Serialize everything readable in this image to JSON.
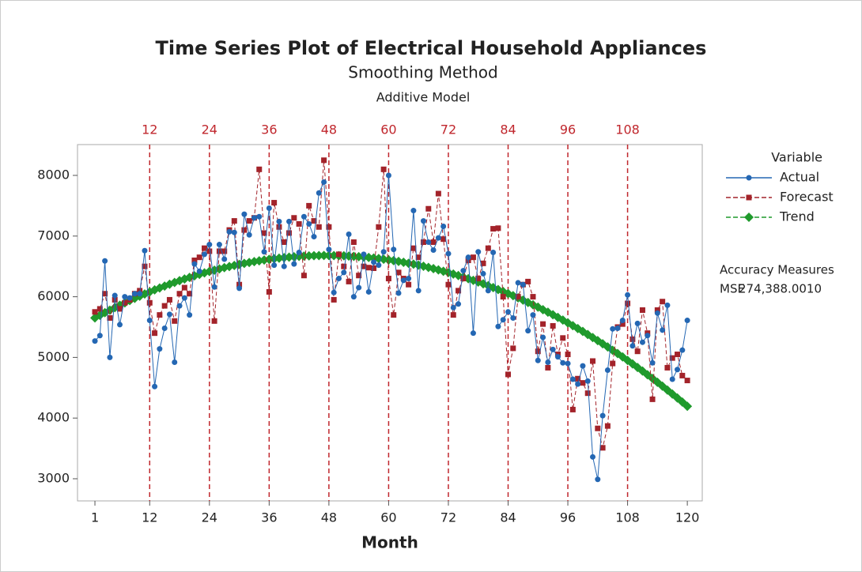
{
  "chart_data": {
    "type": "line",
    "title": "Time Series Plot of Electrical Household Appliances",
    "subtitle": "Smoothing Method",
    "subsubtitle": "Additive Model",
    "x_label": "Month",
    "legend_title": "Variable",
    "accuracy_measures": {
      "title": "Accuracy Measures",
      "rows": [
        {
          "name": "MSE",
          "value": "274,388.0010"
        }
      ]
    },
    "xlim": [
      -2.5,
      123
    ],
    "ylim": [
      2635,
      8508
    ],
    "xticks": [
      1,
      12,
      24,
      36,
      48,
      60,
      72,
      84,
      96,
      108,
      120
    ],
    "yticks": [
      3000,
      4000,
      5000,
      6000,
      7000,
      8000
    ],
    "reference_lines": [
      12,
      24,
      36,
      48,
      60,
      72,
      84,
      96,
      108
    ],
    "reference_color": "#c0272d",
    "x": [
      1,
      2,
      3,
      4,
      5,
      6,
      7,
      8,
      9,
      10,
      11,
      12,
      13,
      14,
      15,
      16,
      17,
      18,
      19,
      20,
      21,
      22,
      23,
      24,
      25,
      26,
      27,
      28,
      29,
      30,
      31,
      32,
      33,
      34,
      35,
      36,
      37,
      38,
      39,
      40,
      41,
      42,
      43,
      44,
      45,
      46,
      47,
      48,
      49,
      50,
      51,
      52,
      53,
      54,
      55,
      56,
      57,
      58,
      59,
      60,
      61,
      62,
      63,
      64,
      65,
      66,
      67,
      68,
      69,
      70,
      71,
      72,
      73,
      74,
      75,
      76,
      77,
      78,
      79,
      80,
      81,
      82,
      83,
      84,
      85,
      86,
      87,
      88,
      89,
      90,
      91,
      92,
      93,
      94,
      95,
      96,
      97,
      98,
      99,
      100,
      101,
      102,
      103,
      104,
      105,
      106,
      107,
      108,
      109,
      110,
      111,
      112,
      113,
      114,
      115,
      116,
      117,
      118,
      119,
      120
    ],
    "series": [
      {
        "name": "Actual",
        "color": "#2467b3",
        "marker": "circle",
        "dashed": false,
        "values": [
          5270,
          5360,
          6590,
          5000,
          6020,
          5540,
          6000,
          5980,
          6050,
          6050,
          6760,
          5610,
          4520,
          5140,
          5480,
          5710,
          4920,
          5850,
          5980,
          5700,
          6540,
          6420,
          6700,
          6860,
          6160,
          6860,
          6620,
          7070,
          7060,
          6140,
          7360,
          7020,
          7300,
          7320,
          6740,
          7460,
          6520,
          7240,
          6500,
          7240,
          6540,
          6730,
          7320,
          7200,
          6990,
          7710,
          7890,
          6780,
          6070,
          6300,
          6400,
          7030,
          6000,
          6150,
          6700,
          6080,
          6570,
          6520,
          6740,
          8000,
          6780,
          6060,
          6270,
          6300,
          7420,
          6100,
          7250,
          6900,
          6770,
          6970,
          7160,
          6710,
          5820,
          5880,
          6430,
          6650,
          5400,
          6740,
          6380,
          6100,
          6730,
          5510,
          5620,
          5750,
          5650,
          6230,
          6200,
          5440,
          5700,
          4950,
          5330,
          4920,
          5130,
          5010,
          4910,
          4900,
          4640,
          4560,
          4860,
          4610,
          3360,
          2990,
          4040,
          4790,
          5470,
          5480,
          5610,
          6030,
          5190,
          5560,
          5250,
          5360,
          4910,
          5730,
          5450,
          5860,
          4640,
          4800,
          5120,
          5610
        ]
      },
      {
        "name": "Forecast",
        "color": "#a3232a",
        "marker": "square",
        "dashed": true,
        "values": [
          5750,
          5800,
          6050,
          5650,
          5950,
          5800,
          5900,
          5950,
          6050,
          6100,
          6500,
          5900,
          5400,
          5700,
          5850,
          5950,
          5600,
          6050,
          6150,
          6050,
          6600,
          6650,
          6800,
          6750,
          5600,
          6750,
          6750,
          7100,
          7250,
          6200,
          7100,
          7250,
          7300,
          8100,
          7050,
          6080,
          7550,
          7150,
          6900,
          7050,
          7300,
          7200,
          6350,
          7500,
          7250,
          7150,
          8250,
          7150,
          5950,
          6700,
          6500,
          6250,
          6900,
          6350,
          6500,
          6480,
          6470,
          7150,
          8100,
          6300,
          5700,
          6400,
          6300,
          6200,
          6800,
          6650,
          6900,
          7450,
          6900,
          7700,
          6950,
          6200,
          5700,
          6100,
          6300,
          6600,
          6650,
          6300,
          6550,
          6800,
          7120,
          7130,
          6000,
          4720,
          5150,
          6000,
          6200,
          6250,
          6000,
          5100,
          5550,
          4830,
          5520,
          5050,
          5320,
          5050,
          4140,
          4650,
          4580,
          4410,
          4940,
          3830,
          3510,
          3870,
          4900,
          5500,
          5550,
          5890,
          5300,
          5100,
          5780,
          5400,
          4310,
          5780,
          5920,
          4830,
          4990,
          5050,
          4700,
          4620
        ]
      },
      {
        "name": "Trend",
        "color": "#1f9a2c",
        "marker": "diamond",
        "dashed": true,
        "values": [
          5651,
          5694,
          5737,
          5779,
          5820,
          5860,
          5899,
          5937,
          5974,
          6010,
          6045,
          6079,
          6113,
          6145,
          6176,
          6207,
          6236,
          6265,
          6292,
          6319,
          6345,
          6369,
          6393,
          6416,
          6438,
          6459,
          6479,
          6498,
          6516,
          6533,
          6549,
          6565,
          6579,
          6592,
          6605,
          6616,
          6627,
          6636,
          6645,
          6653,
          6659,
          6665,
          6670,
          6674,
          6677,
          6679,
          6680,
          6680,
          6679,
          6677,
          6675,
          6671,
          6666,
          6661,
          6654,
          6647,
          6638,
          6629,
          6618,
          6607,
          6595,
          6582,
          6568,
          6552,
          6536,
          6520,
          6502,
          6483,
          6463,
          6442,
          6420,
          6398,
          6374,
          6350,
          6324,
          6298,
          6270,
          6242,
          6213,
          6182,
          6151,
          6119,
          6086,
          6052,
          6017,
          5981,
          5944,
          5906,
          5868,
          5828,
          5787,
          5746,
          5703,
          5659,
          5615,
          5570,
          5523,
          5476,
          5428,
          5378,
          5328,
          5277,
          5225,
          5172,
          5118,
          5063,
          5008,
          4951,
          4893,
          4834,
          4775,
          4714,
          4653,
          4590,
          4527,
          4462,
          4397,
          4331,
          4264,
          4195
        ]
      }
    ]
  }
}
